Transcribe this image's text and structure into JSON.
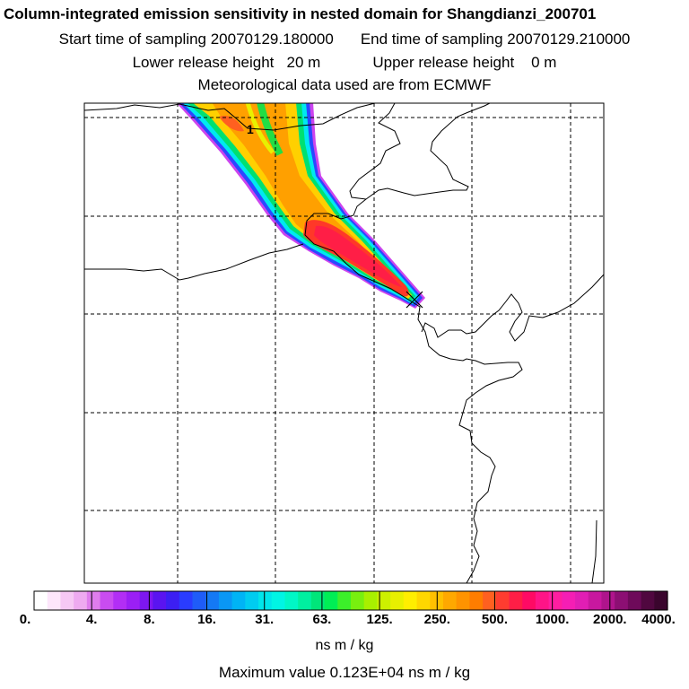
{
  "title": {
    "line1": "Column-integrated emission sensitivity in nested domain for Shangdianzi_200701",
    "start_label": "Start time of sampling 20070129.180000",
    "end_label": "End time of sampling 20070129.210000",
    "lower_label": "Lower release height   20 m",
    "upper_label": "Upper release height    0 m",
    "met_label": "Meteorological data used are from ECMWF"
  },
  "map": {
    "marker_label": "1",
    "release_marker": "X"
  },
  "colorbar": {
    "ticks": [
      "0.",
      "4.",
      "8.",
      "16.",
      "31.",
      "63.",
      "125.",
      "250.",
      "500.",
      "1000.",
      "2000.",
      "4000."
    ],
    "colors": [
      "#ffffff",
      "#fde6fb",
      "#f6c8f4",
      "#eeaaf0",
      "#df7ded",
      "#c94cf0",
      "#b22ef5",
      "#9b1ff5",
      "#7d17f0",
      "#5a14f0",
      "#3c1ff3",
      "#2a3cff",
      "#1f5cf8",
      "#1479f5",
      "#0a97f5",
      "#00b4f5",
      "#00ccf0",
      "#00e5ea",
      "#00f5e4",
      "#00f7c6",
      "#00f0a0",
      "#00e67a",
      "#00ee55",
      "#3cf02a",
      "#78f00f",
      "#a8f000",
      "#cdf000",
      "#e8f000",
      "#ffee00",
      "#ffd700",
      "#ffc000",
      "#ffa800",
      "#ff9300",
      "#ff7d00",
      "#ff6020",
      "#ff3c30",
      "#ff1e46",
      "#ff0a64",
      "#ff1487",
      "#ff1ea0",
      "#f51eb4",
      "#e11eb4",
      "#c8189f",
      "#af148c",
      "#8c0f73",
      "#6e0a5a",
      "#50073f",
      "#3a052d"
    ]
  },
  "units": "ns m / kg",
  "max_value": "Maximum value  0.123E+04 ns m / kg"
}
